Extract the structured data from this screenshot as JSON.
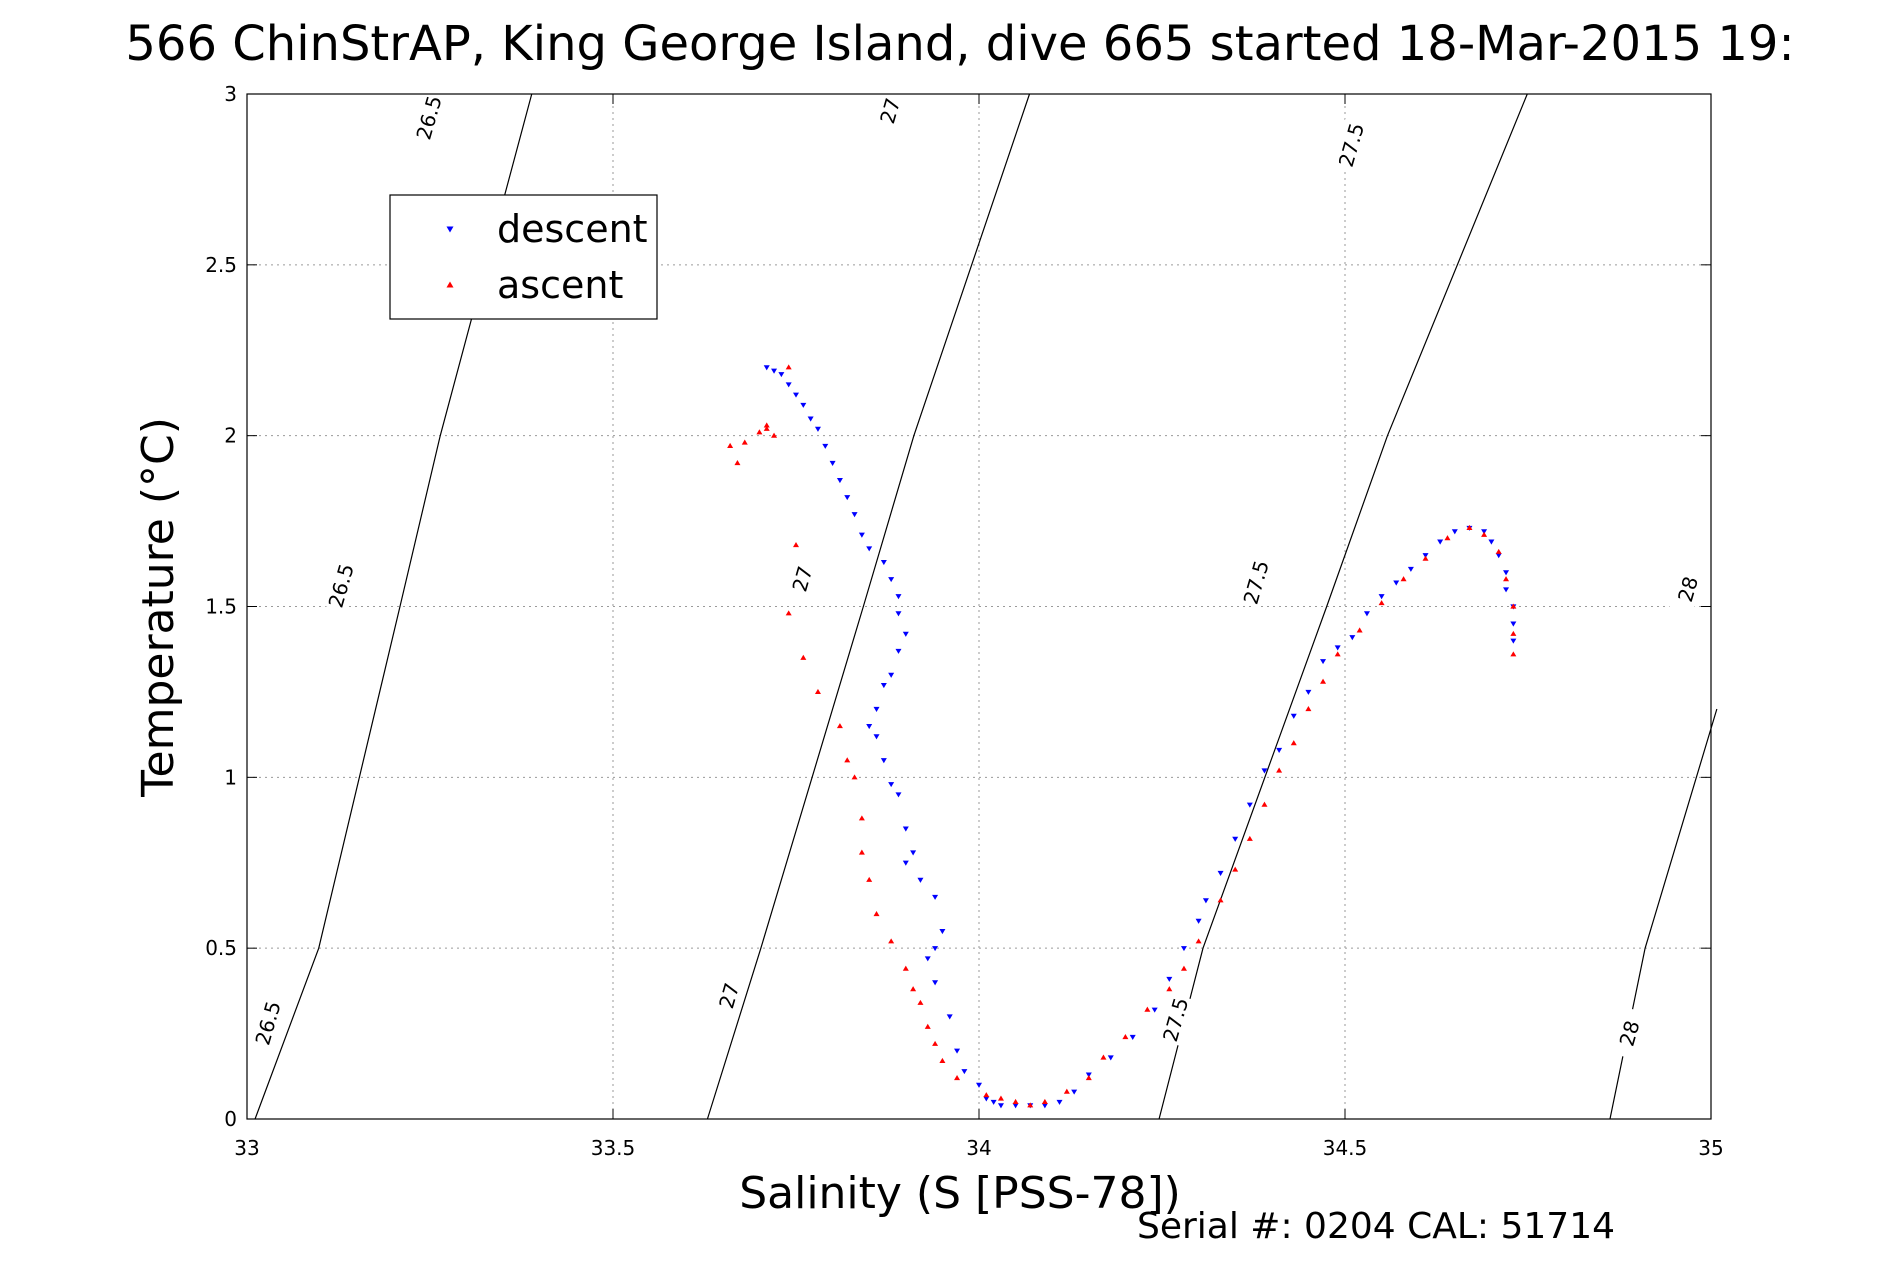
{
  "chart_data": {
    "type": "scatter",
    "title": "566 ChinStrAP, King George Island, dive 665 started 18-Mar-2015 19:",
    "xlabel": "Salinity (S [PSS-78])",
    "ylabel": "Temperature (°C)",
    "xlim": [
      33,
      35
    ],
    "ylim": [
      0,
      3
    ],
    "xticks": [
      33,
      33.5,
      34,
      34.5,
      35
    ],
    "yticks": [
      0,
      0.5,
      1,
      1.5,
      2,
      2.5,
      3
    ],
    "xtick_labels": [
      "33",
      "33.5",
      "34",
      "34.5",
      "35"
    ],
    "ytick_labels": [
      "0",
      "0.5",
      "1",
      "1.5",
      "2",
      "2.5",
      "3"
    ],
    "grid": true,
    "legend_position": "top-left",
    "legend": [
      {
        "label": "descent",
        "marker": "triangle-down",
        "color": "#0000ff"
      },
      {
        "label": "ascent",
        "marker": "triangle-up",
        "color": "#ff0000"
      }
    ],
    "series": [
      {
        "name": "descent",
        "color": "#0000ff",
        "marker": "triangle-down",
        "points": [
          [
            33.71,
            2.2
          ],
          [
            33.72,
            2.19
          ],
          [
            33.73,
            2.18
          ],
          [
            33.74,
            2.15
          ],
          [
            33.75,
            2.12
          ],
          [
            33.76,
            2.09
          ],
          [
            33.77,
            2.05
          ],
          [
            33.78,
            2.02
          ],
          [
            33.79,
            1.97
          ],
          [
            33.8,
            1.92
          ],
          [
            33.81,
            1.87
          ],
          [
            33.82,
            1.82
          ],
          [
            33.83,
            1.77
          ],
          [
            33.84,
            1.71
          ],
          [
            33.85,
            1.67
          ],
          [
            33.87,
            1.63
          ],
          [
            33.88,
            1.58
          ],
          [
            33.89,
            1.53
          ],
          [
            33.89,
            1.48
          ],
          [
            33.9,
            1.42
          ],
          [
            33.89,
            1.37
          ],
          [
            33.88,
            1.3
          ],
          [
            33.87,
            1.27
          ],
          [
            33.86,
            1.2
          ],
          [
            33.85,
            1.15
          ],
          [
            33.86,
            1.12
          ],
          [
            33.87,
            1.05
          ],
          [
            33.88,
            0.98
          ],
          [
            33.89,
            0.95
          ],
          [
            33.9,
            0.85
          ],
          [
            33.91,
            0.78
          ],
          [
            33.9,
            0.75
          ],
          [
            33.92,
            0.7
          ],
          [
            33.94,
            0.65
          ],
          [
            33.95,
            0.55
          ],
          [
            33.94,
            0.5
          ],
          [
            33.93,
            0.47
          ],
          [
            33.94,
            0.4
          ],
          [
            33.96,
            0.3
          ],
          [
            33.97,
            0.2
          ],
          [
            33.98,
            0.14
          ],
          [
            34.0,
            0.1
          ],
          [
            34.01,
            0.06
          ],
          [
            34.02,
            0.05
          ],
          [
            34.03,
            0.04
          ],
          [
            34.05,
            0.04
          ],
          [
            34.07,
            0.04
          ],
          [
            34.09,
            0.04
          ],
          [
            34.11,
            0.05
          ],
          [
            34.13,
            0.08
          ],
          [
            34.15,
            0.13
          ],
          [
            34.18,
            0.18
          ],
          [
            34.21,
            0.24
          ],
          [
            34.24,
            0.32
          ],
          [
            34.26,
            0.41
          ],
          [
            34.28,
            0.5
          ],
          [
            34.3,
            0.58
          ],
          [
            34.31,
            0.64
          ],
          [
            34.33,
            0.72
          ],
          [
            34.35,
            0.82
          ],
          [
            34.37,
            0.92
          ],
          [
            34.39,
            1.02
          ],
          [
            34.41,
            1.08
          ],
          [
            34.43,
            1.18
          ],
          [
            34.45,
            1.25
          ],
          [
            34.47,
            1.34
          ],
          [
            34.49,
            1.38
          ],
          [
            34.51,
            1.41
          ],
          [
            34.53,
            1.48
          ],
          [
            34.55,
            1.53
          ],
          [
            34.57,
            1.57
          ],
          [
            34.59,
            1.61
          ],
          [
            34.61,
            1.65
          ],
          [
            34.63,
            1.69
          ],
          [
            34.65,
            1.72
          ],
          [
            34.67,
            1.73
          ],
          [
            34.69,
            1.72
          ],
          [
            34.7,
            1.69
          ],
          [
            34.71,
            1.65
          ],
          [
            34.72,
            1.6
          ],
          [
            34.72,
            1.55
          ],
          [
            34.73,
            1.5
          ],
          [
            34.73,
            1.45
          ],
          [
            34.73,
            1.4
          ]
        ]
      },
      {
        "name": "ascent",
        "color": "#ff0000",
        "marker": "triangle-up",
        "points": [
          [
            33.66,
            1.97
          ],
          [
            33.67,
            1.92
          ],
          [
            33.68,
            1.98
          ],
          [
            33.7,
            2.01
          ],
          [
            33.71,
            2.02
          ],
          [
            33.72,
            2.0
          ],
          [
            33.74,
            2.2
          ],
          [
            33.71,
            2.03
          ],
          [
            33.75,
            1.68
          ],
          [
            33.74,
            1.48
          ],
          [
            33.76,
            1.35
          ],
          [
            33.78,
            1.25
          ],
          [
            33.81,
            1.15
          ],
          [
            33.82,
            1.05
          ],
          [
            33.83,
            1.0
          ],
          [
            33.84,
            0.88
          ],
          [
            33.84,
            0.78
          ],
          [
            33.85,
            0.7
          ],
          [
            33.86,
            0.6
          ],
          [
            33.88,
            0.52
          ],
          [
            33.9,
            0.44
          ],
          [
            33.91,
            0.38
          ],
          [
            33.92,
            0.34
          ],
          [
            33.93,
            0.27
          ],
          [
            33.94,
            0.22
          ],
          [
            33.95,
            0.17
          ],
          [
            33.97,
            0.12
          ],
          [
            34.01,
            0.07
          ],
          [
            34.03,
            0.06
          ],
          [
            34.05,
            0.05
          ],
          [
            34.07,
            0.04
          ],
          [
            34.09,
            0.05
          ],
          [
            34.12,
            0.08
          ],
          [
            34.15,
            0.12
          ],
          [
            34.17,
            0.18
          ],
          [
            34.2,
            0.24
          ],
          [
            34.23,
            0.32
          ],
          [
            34.26,
            0.38
          ],
          [
            34.28,
            0.44
          ],
          [
            34.3,
            0.52
          ],
          [
            34.33,
            0.64
          ],
          [
            34.35,
            0.73
          ],
          [
            34.37,
            0.82
          ],
          [
            34.39,
            0.92
          ],
          [
            34.41,
            1.02
          ],
          [
            34.43,
            1.1
          ],
          [
            34.45,
            1.2
          ],
          [
            34.47,
            1.28
          ],
          [
            34.49,
            1.36
          ],
          [
            34.52,
            1.43
          ],
          [
            34.55,
            1.51
          ],
          [
            34.58,
            1.58
          ],
          [
            34.61,
            1.64
          ],
          [
            34.64,
            1.7
          ],
          [
            34.67,
            1.73
          ],
          [
            34.69,
            1.71
          ],
          [
            34.71,
            1.66
          ],
          [
            34.72,
            1.58
          ],
          [
            34.73,
            1.5
          ],
          [
            34.73,
            1.42
          ],
          [
            34.73,
            1.36
          ]
        ]
      }
    ],
    "density_contours": [
      {
        "label": "26.5",
        "points": [
          [
            33.011,
            0.0
          ],
          [
            33.098,
            0.5
          ],
          [
            33.209,
            1.5
          ],
          [
            33.264,
            2.0
          ],
          [
            33.389,
            3.0
          ]
        ],
        "label_at": [
          [
            33.03,
            0.28
          ],
          [
            33.13,
            1.56
          ],
          [
            33.25,
            2.93
          ]
        ]
      },
      {
        "label": "27",
        "points": [
          [
            33.629,
            0.0
          ],
          [
            33.702,
            0.5
          ],
          [
            33.842,
            1.5
          ],
          [
            33.911,
            2.0
          ],
          [
            34.069,
            3.0
          ]
        ],
        "label_at": [
          [
            33.66,
            0.36
          ],
          [
            33.76,
            1.58
          ],
          [
            33.88,
            2.95
          ]
        ]
      },
      {
        "label": "27.5",
        "points": [
          [
            34.246,
            0.0
          ],
          [
            34.306,
            0.5
          ],
          [
            34.475,
            1.5
          ],
          [
            34.558,
            2.0
          ],
          [
            34.749,
            3.0
          ]
        ],
        "label_at": [
          [
            34.27,
            0.29
          ],
          [
            34.38,
            1.57
          ],
          [
            34.51,
            2.85
          ]
        ]
      },
      {
        "label": "28",
        "points": [
          [
            34.862,
            0.0
          ],
          [
            34.91,
            0.5
          ],
          [
            35.008,
            1.2
          ]
        ],
        "label_at": [
          [
            34.89,
            0.25
          ],
          [
            34.97,
            1.55
          ]
        ]
      }
    ],
    "footer": "Serial #: 0204  CAL: 51714"
  }
}
